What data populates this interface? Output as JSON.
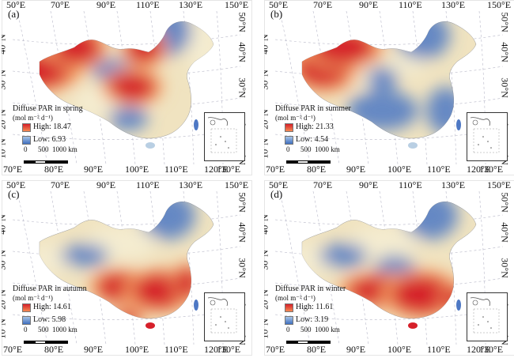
{
  "panels": [
    {
      "id": "a",
      "label": "(a)",
      "season_title": "Diffuse PAR in spring",
      "high": "High: 18.47",
      "low": "Low: 6.93",
      "hot": [
        [
          40,
          90,
          48,
          22
        ],
        [
          95,
          60,
          30,
          22
        ],
        [
          165,
          110,
          30,
          18
        ],
        [
          180,
          60,
          22,
          20
        ]
      ],
      "cool": [
        [
          210,
          40,
          30,
          30
        ],
        [
          160,
          150,
          25,
          15
        ],
        [
          140,
          90,
          25,
          15
        ]
      ],
      "pale": [
        [
          255,
          60,
          20,
          40
        ],
        [
          120,
          130,
          30,
          20
        ]
      ]
    },
    {
      "id": "b",
      "label": "(b)",
      "season_title": "Diffuse PAR in summer",
      "high": "High: 21.33",
      "low": "Low: 4.54",
      "hot": [
        [
          75,
          85,
          35,
          25
        ],
        [
          100,
          60,
          40,
          22
        ]
      ],
      "cool": [
        [
          200,
          45,
          35,
          30
        ],
        [
          150,
          140,
          45,
          25
        ],
        [
          230,
          140,
          25,
          30
        ],
        [
          150,
          100,
          20,
          15
        ]
      ],
      "pale": [
        [
          130,
          95,
          25,
          15
        ],
        [
          180,
          80,
          25,
          15
        ]
      ]
    },
    {
      "id": "c",
      "label": "(c)",
      "season_title": "Diffuse PAR in autumn",
      "high": "High: 14.61",
      "low": "Low: 5.98",
      "hot": [
        [
          150,
          135,
          30,
          18
        ],
        [
          200,
          140,
          35,
          22
        ],
        [
          160,
          175,
          15,
          10
        ],
        [
          235,
          130,
          15,
          20
        ]
      ],
      "cool": [
        [
          210,
          45,
          35,
          30
        ],
        [
          105,
          95,
          30,
          14
        ]
      ],
      "pale": [
        [
          150,
          80,
          45,
          22
        ],
        [
          60,
          100,
          30,
          20
        ]
      ]
    },
    {
      "id": "d",
      "label": "(d)",
      "season_title": "Diffuse PAR in winter",
      "high": "High: 11.61",
      "low": "Low: 3.19",
      "hot": [
        [
          145,
          140,
          40,
          18
        ],
        [
          200,
          145,
          40,
          24
        ],
        [
          240,
          150,
          15,
          15
        ]
      ],
      "cool": [
        [
          210,
          45,
          35,
          30
        ],
        [
          100,
          95,
          30,
          15
        ],
        [
          165,
          110,
          25,
          15
        ]
      ],
      "pale": [
        [
          150,
          80,
          45,
          22
        ],
        [
          60,
          100,
          30,
          20
        ]
      ]
    }
  ],
  "axis": {
    "top_lon": [
      "50°E",
      "70°E",
      "90°E",
      "110°E",
      "130°E",
      "150°E"
    ],
    "bottom_lon": [
      "70°E",
      "80°E",
      "90°E",
      "100°E",
      "110°E",
      "120°E",
      "130°E"
    ],
    "left_lat": [
      "40°N",
      "30°N",
      "20°N",
      "10°N"
    ],
    "right_lat": [
      "50°N",
      "40°N",
      "30°N",
      "20°N",
      "10°N"
    ]
  },
  "legend": {
    "unit": "(mol m⁻² d⁻¹)"
  },
  "scale": {
    "labels": [
      "0",
      "500",
      "1000 km"
    ]
  },
  "colors": {
    "hot": "#d6202a",
    "warm": "#f7a468",
    "pale": "#f4ecd0",
    "cool": "#b9cfe3",
    "cold": "#4e78c4",
    "land": "#f0e3c0"
  }
}
